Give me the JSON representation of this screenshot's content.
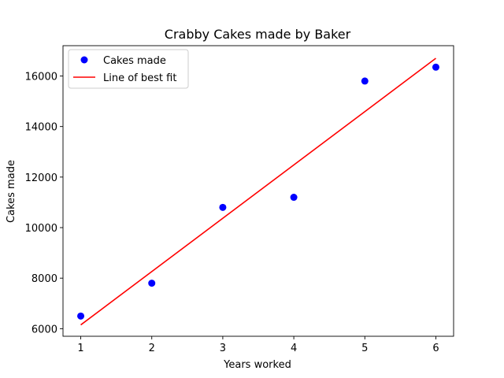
{
  "chart_data": {
    "type": "scatter",
    "title": "Crabby Cakes made by Baker",
    "xlabel": "Years worked",
    "ylabel": "Cakes made",
    "xlim": [
      0.75,
      6.25
    ],
    "ylim": [
      5700,
      17200
    ],
    "xticks": [
      1,
      2,
      3,
      4,
      5,
      6
    ],
    "yticks": [
      6000,
      8000,
      10000,
      12000,
      14000,
      16000
    ],
    "grid": false,
    "legend_position": "top-left",
    "series": [
      {
        "name": "Cakes made",
        "kind": "scatter",
        "color": "#0000ff",
        "x": [
          1,
          2,
          3,
          4,
          5,
          6
        ],
        "y": [
          6500,
          7800,
          10800,
          11200,
          15800,
          16350
        ]
      },
      {
        "name": "Line of best fit",
        "kind": "line",
        "color": "#ff0000",
        "x": [
          1,
          6
        ],
        "y": [
          6150,
          16700
        ]
      }
    ]
  }
}
